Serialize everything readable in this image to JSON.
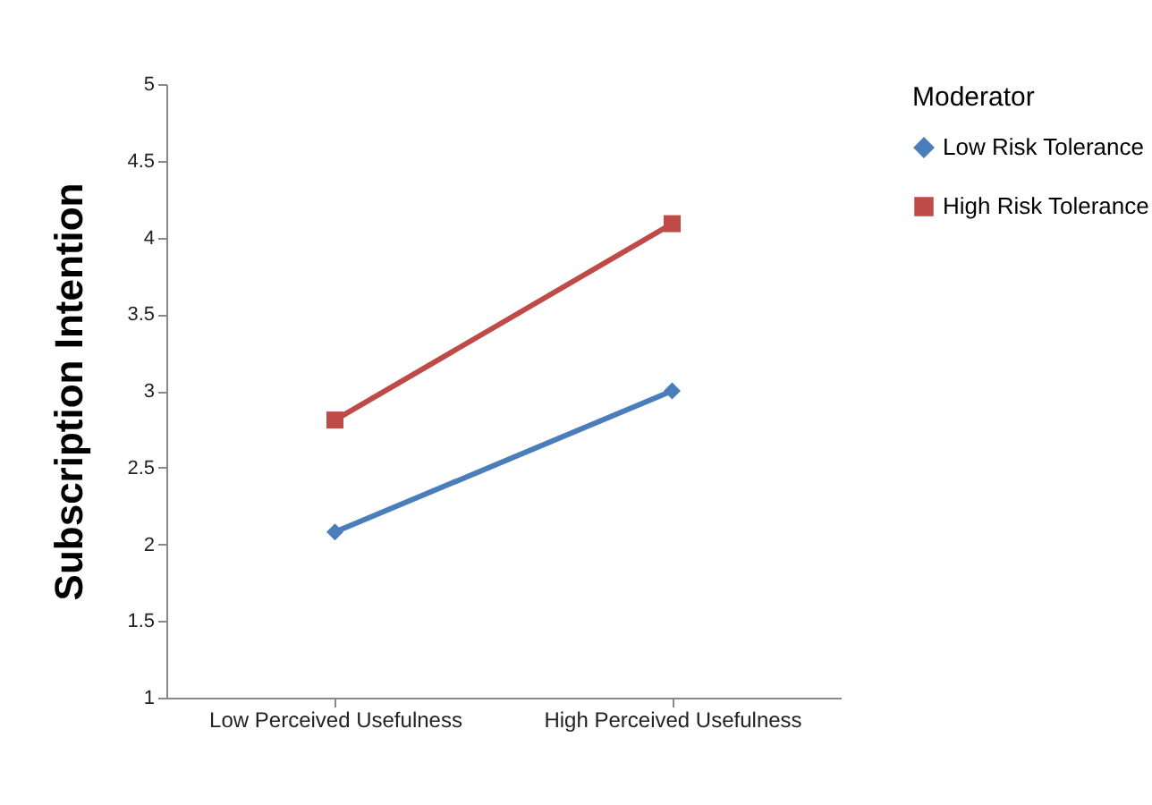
{
  "chart_data": {
    "type": "line",
    "ylabel": "Subscription Intention",
    "legend_title": "Moderator",
    "legend": "right",
    "categories": [
      "Low Perceived Usefulness",
      "High Perceived Usefulness"
    ],
    "ylim": [
      1,
      5
    ],
    "yticks": [
      1,
      1.5,
      2,
      2.5,
      3,
      3.5,
      4,
      4.5,
      5
    ],
    "grid": false,
    "series": [
      {
        "name": "Low Risk Tolerance",
        "color": "#4a7ebb",
        "marker": "diamond",
        "values": [
          2.08,
          3.0
        ]
      },
      {
        "name": "High Risk Tolerance",
        "color": "#be4b48",
        "marker": "square",
        "values": [
          2.81,
          4.09
        ]
      }
    ]
  }
}
